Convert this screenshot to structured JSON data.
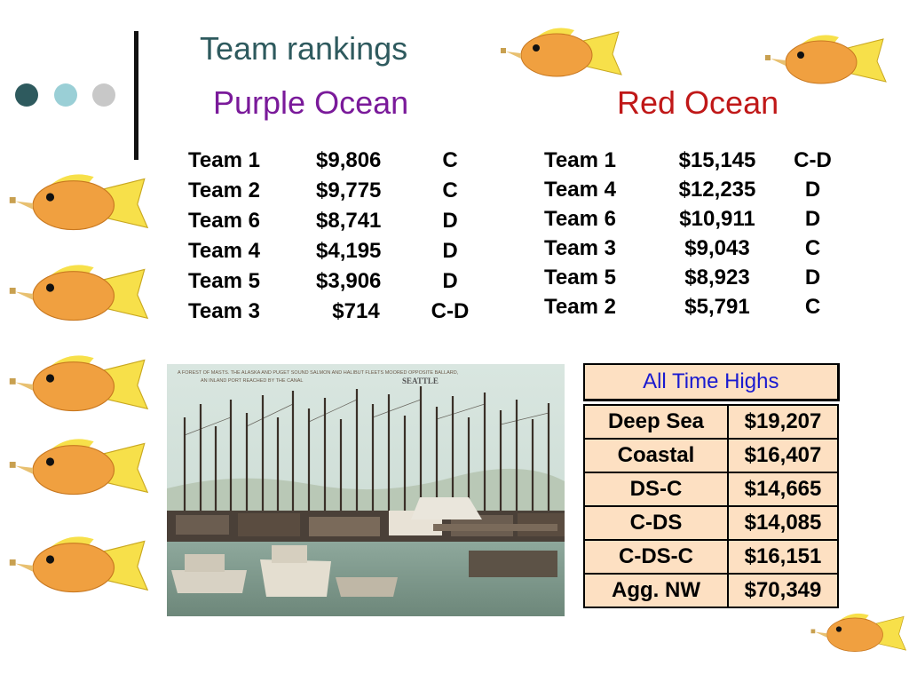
{
  "slide": {
    "title": "Team rankings"
  },
  "purple": {
    "heading": "Purple Ocean",
    "color": "#7a1a9a",
    "rows": [
      {
        "team": "Team 1",
        "amount": "$9,806",
        "grade": "C"
      },
      {
        "team": "Team 2",
        "amount": "$9,775",
        "grade": "C"
      },
      {
        "team": "Team 6",
        "amount": "$8,741",
        "grade": "D"
      },
      {
        "team": "Team 4",
        "amount": "$4,195",
        "grade": "D"
      },
      {
        "team": "Team 5",
        "amount": "$3,906",
        "grade": "D"
      },
      {
        "team": "Team 3",
        "amount": "$714",
        "grade": "C-D"
      }
    ]
  },
  "red": {
    "heading": "Red Ocean",
    "color": "#c01818",
    "rows": [
      {
        "team": "Team 1",
        "amount": "$15,145",
        "grade": "C-D"
      },
      {
        "team": "Team 4",
        "amount": "$12,235",
        "grade": "D"
      },
      {
        "team": "Team 6",
        "amount": "$10,911",
        "grade": "D"
      },
      {
        "team": "Team 3",
        "amount": "$9,043",
        "grade": "C"
      },
      {
        "team": "Team 5",
        "amount": "$8,923",
        "grade": "D"
      },
      {
        "team": "Team 2",
        "amount": "$5,791",
        "grade": "C"
      }
    ]
  },
  "highs": {
    "header": "All Time Highs",
    "header_color": "#1a1ad0",
    "rows": [
      {
        "label": "Deep Sea",
        "value": "$19,207"
      },
      {
        "label": "Coastal",
        "value": "$16,407"
      },
      {
        "label": "DS-C",
        "value": "$14,665"
      },
      {
        "label": "C-DS",
        "value": "$14,085"
      },
      {
        "label": "C-DS-C",
        "value": "$16,151"
      },
      {
        "label": "Agg. NW",
        "value": "$70,349"
      }
    ]
  },
  "photo": {
    "caption": "A FOREST OF MASTS. THE ALASKA AND PUGET SOUND SALMON AND HALIBUT FLEETS MOORED OPPOSITE BALLARD,",
    "caption2": "AN INLAND PORT REACHED BY THE CANAL",
    "stamp": "SEATTLE"
  },
  "colors": {
    "dot1": "#2e5a5e",
    "dot2": "#9acfd6",
    "dot3": "#c8c8c8",
    "fish_body": "#f0a040",
    "fish_fin": "#f7e04a"
  }
}
